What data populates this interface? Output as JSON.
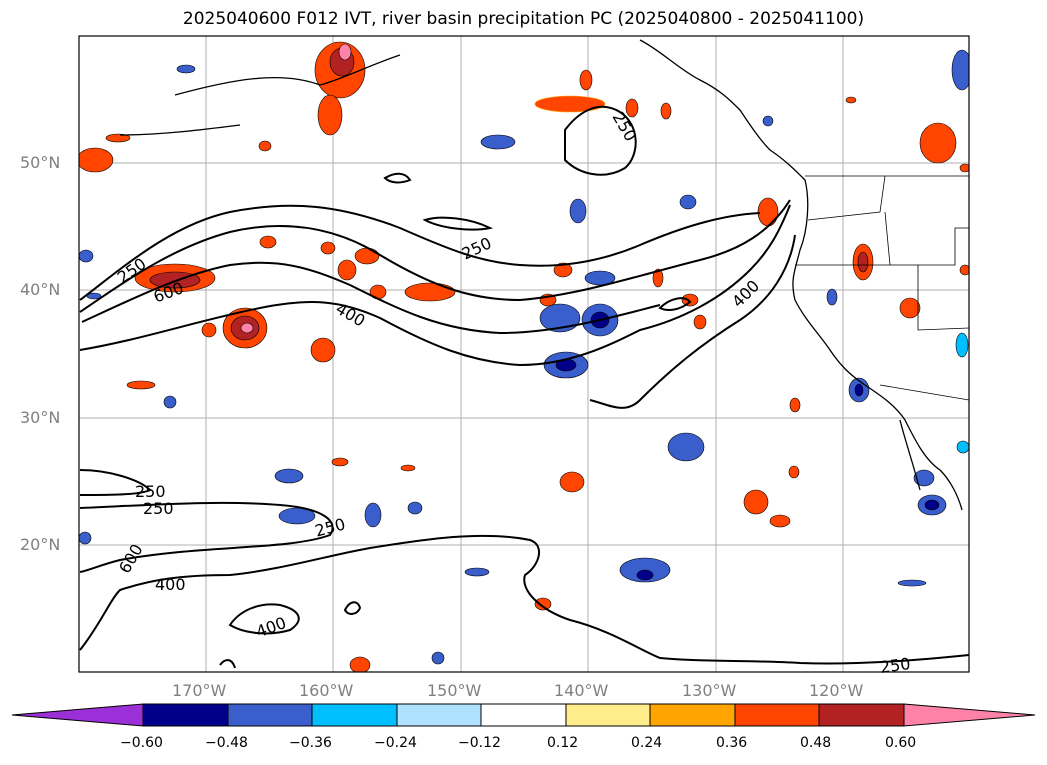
{
  "title": "2025040600 F012 IVT, river basin precipitation PC (2025040800 - 2025041100)",
  "map": {
    "lat_labels": [
      "50°N",
      "40°N",
      "30°N",
      "20°N"
    ],
    "lon_labels": [
      "170°W",
      "160°W",
      "150°W",
      "140°W",
      "130°W",
      "120°W"
    ],
    "contour_labels": [
      "250",
      "250",
      "250",
      "250",
      "250",
      "250",
      "250",
      "400",
      "400",
      "400",
      "400",
      "600",
      "600"
    ]
  },
  "colorbar": {
    "ticks": [
      "−0.60",
      "−0.48",
      "−0.36",
      "−0.24",
      "−0.12",
      "0.12",
      "0.24",
      "0.36",
      "0.48",
      "0.60"
    ],
    "colors": [
      "#9b30d9",
      "#00008b",
      "#3a5fcd",
      "#00bfff",
      "#b0e2ff",
      "#ffffff",
      "#ffec8b",
      "#ffa500",
      "#ff4500",
      "#b22222",
      "#ff83a8"
    ]
  }
}
